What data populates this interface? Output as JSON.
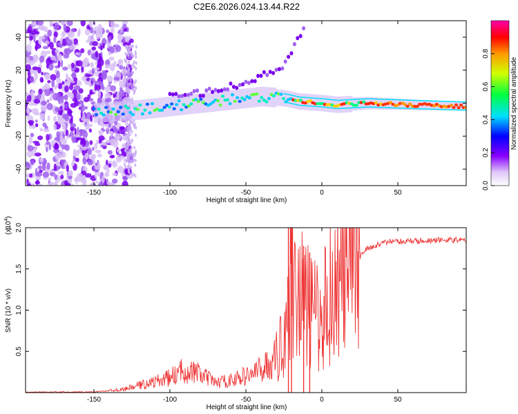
{
  "title": "C2E6.2026.024.13.44.R22",
  "chart_data": [
    {
      "type": "heatmap",
      "name": "spectrogram",
      "xlabel": "Height of straight line (km)",
      "ylabel": "Frequency (Hz)",
      "xlim": [
        -195,
        95
      ],
      "ylim": [
        -50,
        50
      ],
      "xticks": [
        -150,
        -100,
        -50,
        0,
        50
      ],
      "yticks": [
        -40,
        -20,
        0,
        20,
        40
      ],
      "ridge": [
        {
          "x": -150,
          "y": -6
        },
        {
          "x": -120,
          "y": -4
        },
        {
          "x": -100,
          "y": -2
        },
        {
          "x": -80,
          "y": 0
        },
        {
          "x": -60,
          "y": 2
        },
        {
          "x": -40,
          "y": 4
        },
        {
          "x": -25,
          "y": 3
        },
        {
          "x": -15,
          "y": 1
        },
        {
          "x": 0,
          "y": 0
        },
        {
          "x": 10,
          "y": -1
        },
        {
          "x": 30,
          "y": 0
        },
        {
          "x": 60,
          "y": -1
        },
        {
          "x": 95,
          "y": -2
        }
      ],
      "upper_branch": [
        {
          "x": -100,
          "y": 4
        },
        {
          "x": -80,
          "y": 6
        },
        {
          "x": -60,
          "y": 10
        },
        {
          "x": -45,
          "y": 14
        },
        {
          "x": -35,
          "y": 18
        },
        {
          "x": -25,
          "y": 23
        },
        {
          "x": -20,
          "y": 30
        },
        {
          "x": -15,
          "y": 40
        },
        {
          "x": -12,
          "y": 46
        }
      ],
      "colorbar": {
        "label": "Normalized spectral amplitude",
        "range": [
          0,
          1
        ],
        "ticks": [
          "0.0",
          "0.2",
          "0.4",
          "0.6",
          "0.8"
        ]
      }
    },
    {
      "type": "line",
      "name": "snr",
      "xlabel": "Height of straight line (km)",
      "ylabel": "SNR (10 * v/v)",
      "scale_label": "(x10",
      "scale_exp": "4",
      "scale_close": ")",
      "xlim": [
        -195,
        95
      ],
      "ylim": [
        0,
        20000
      ],
      "xticks": [
        -150,
        -100,
        -50,
        0,
        50
      ],
      "yticks": [
        "0.5",
        "1.0",
        "1.5",
        "2.0"
      ],
      "color": "#ee3333",
      "envelope": [
        {
          "x": -195,
          "y": 50
        },
        {
          "x": -150,
          "y": 80
        },
        {
          "x": -130,
          "y": 400
        },
        {
          "x": -120,
          "y": 900
        },
        {
          "x": -110,
          "y": 1300
        },
        {
          "x": -100,
          "y": 1800
        },
        {
          "x": -90,
          "y": 2800
        },
        {
          "x": -80,
          "y": 2200
        },
        {
          "x": -70,
          "y": 1200
        },
        {
          "x": -60,
          "y": 1500
        },
        {
          "x": -50,
          "y": 2000
        },
        {
          "x": -40,
          "y": 2800
        },
        {
          "x": -30,
          "y": 4200
        },
        {
          "x": -25,
          "y": 7000
        },
        {
          "x": -22,
          "y": 12000
        },
        {
          "x": -20,
          "y": 16000
        },
        {
          "x": -15,
          "y": 12500
        },
        {
          "x": -10,
          "y": 10500
        },
        {
          "x": -5,
          "y": 9500
        },
        {
          "x": 0,
          "y": 9000
        },
        {
          "x": 5,
          "y": 12500
        },
        {
          "x": 10,
          "y": 13000
        },
        {
          "x": 20,
          "y": 15000
        },
        {
          "x": 25,
          "y": 16500
        },
        {
          "x": 30,
          "y": 17500
        },
        {
          "x": 40,
          "y": 18200
        },
        {
          "x": 60,
          "y": 18400
        },
        {
          "x": 80,
          "y": 18500
        },
        {
          "x": 95,
          "y": 18500
        }
      ],
      "spikes": [
        {
          "x": -22,
          "y": 20500
        },
        {
          "x": -20,
          "y": 20500
        },
        {
          "x": -8,
          "y": 17000
        },
        {
          "x": -12,
          "y": 17800
        }
      ]
    }
  ]
}
